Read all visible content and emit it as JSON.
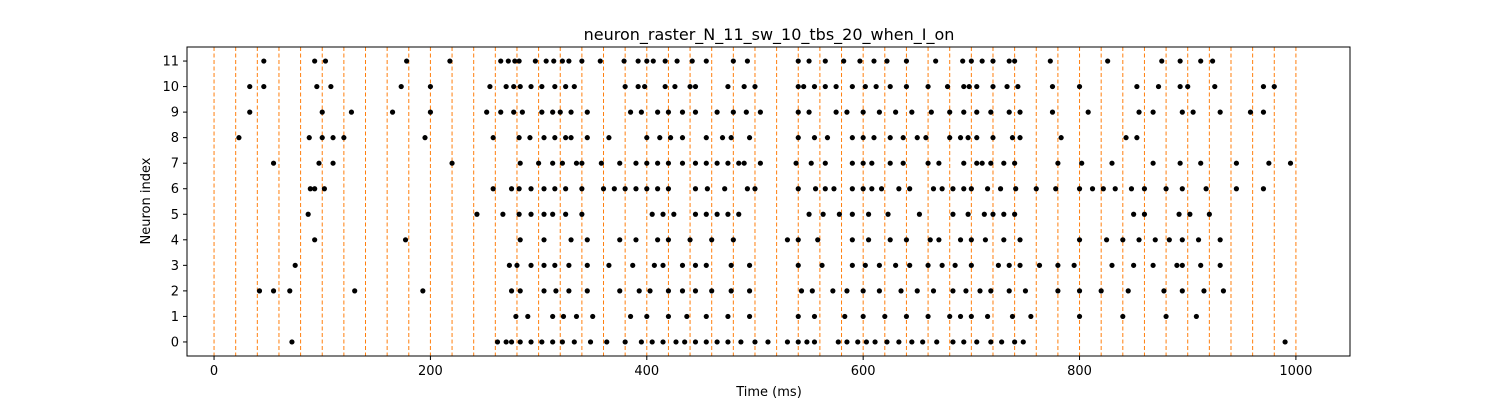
{
  "chart_data": {
    "type": "scatter",
    "title": "neuron_raster_N_11_sw_10_tbs_20_when_I_on",
    "xlabel": "Time (ms)",
    "ylabel": "Neuron index",
    "xlim": [
      -25,
      1050
    ],
    "ylim": [
      -0.55,
      11.55
    ],
    "xticks": [
      0,
      200,
      400,
      600,
      800,
      1000
    ],
    "yticks": [
      0,
      1,
      2,
      3,
      4,
      5,
      6,
      7,
      8,
      9,
      10,
      11
    ],
    "grid": false,
    "marker_color": "#000000",
    "vline_color": "#ff7f0e",
    "vline_style": "dashed",
    "vlines": [
      0,
      20,
      40,
      60,
      80,
      100,
      120,
      140,
      160,
      180,
      200,
      220,
      240,
      260,
      280,
      300,
      320,
      340,
      360,
      380,
      400,
      420,
      440,
      460,
      480,
      500,
      520,
      540,
      560,
      580,
      600,
      620,
      640,
      660,
      680,
      700,
      720,
      740,
      760,
      780,
      800,
      820,
      840,
      860,
      880,
      900,
      920,
      940,
      960,
      980,
      1000
    ],
    "spikes": [
      {
        "neuron": 11,
        "times": [
          46,
          93,
          103,
          178,
          218,
          265,
          272,
          278,
          282,
          297,
          307,
          314,
          322,
          328,
          340,
          357,
          379,
          392,
          400,
          406,
          417,
          428,
          442,
          455,
          480,
          493,
          540,
          550,
          565,
          582,
          597,
          610,
          622,
          640,
          667,
          692,
          700,
          710,
          720,
          735,
          740,
          773,
          826,
          876,
          893,
          912,
          923
        ]
      },
      {
        "neuron": 10,
        "times": [
          33,
          46,
          95,
          108,
          173,
          200,
          255,
          270,
          277,
          283,
          293,
          303,
          315,
          325,
          333,
          380,
          392,
          398,
          417,
          426,
          440,
          445,
          475,
          490,
          500,
          540,
          545,
          555,
          565,
          575,
          590,
          602,
          612,
          625,
          640,
          660,
          678,
          693,
          698,
          705,
          720,
          733,
          743,
          775,
          800,
          853,
          873,
          893,
          900,
          925,
          970,
          980
        ]
      },
      {
        "neuron": 9,
        "times": [
          33,
          100,
          127,
          165,
          200,
          252,
          265,
          277,
          285,
          303,
          313,
          320,
          330,
          345,
          385,
          395,
          410,
          420,
          433,
          445,
          465,
          480,
          492,
          505,
          540,
          550,
          575,
          585,
          600,
          615,
          630,
          645,
          663,
          680,
          693,
          705,
          718,
          735,
          745,
          775,
          808,
          855,
          868,
          895,
          905,
          930,
          958,
          970
        ]
      },
      {
        "neuron": 8,
        "times": [
          23,
          88,
          100,
          110,
          120,
          195,
          258,
          282,
          292,
          305,
          315,
          325,
          330,
          345,
          365,
          400,
          412,
          422,
          433,
          455,
          470,
          478,
          495,
          540,
          555,
          567,
          590,
          600,
          610,
          625,
          637,
          650,
          658,
          680,
          690,
          697,
          705,
          720,
          738,
          745,
          783,
          843,
          853
        ]
      },
      {
        "neuron": 7,
        "times": [
          55,
          97,
          110,
          220,
          283,
          300,
          313,
          322,
          335,
          340,
          358,
          375,
          390,
          400,
          410,
          420,
          433,
          445,
          455,
          465,
          475,
          485,
          490,
          505,
          538,
          552,
          565,
          590,
          600,
          608,
          625,
          637,
          660,
          670,
          693,
          705,
          710,
          718,
          730,
          740,
          780,
          802,
          830,
          868,
          893,
          912,
          945,
          975,
          995
        ]
      },
      {
        "neuron": 6,
        "times": [
          89,
          93,
          102,
          258,
          275,
          282,
          293,
          305,
          315,
          325,
          340,
          360,
          370,
          380,
          390,
          400,
          410,
          420,
          445,
          456,
          472,
          493,
          500,
          540,
          556,
          565,
          573,
          590,
          600,
          608,
          617,
          633,
          643,
          665,
          673,
          683,
          693,
          700,
          715,
          727,
          741,
          760,
          778,
          800,
          812,
          822,
          833,
          848,
          860,
          880,
          895,
          917,
          945,
          970
        ]
      },
      {
        "neuron": 5,
        "times": [
          87,
          243,
          267,
          282,
          293,
          305,
          313,
          325,
          340,
          405,
          415,
          425,
          445,
          455,
          465,
          475,
          485,
          550,
          563,
          578,
          590,
          605,
          623,
          652,
          683,
          697,
          712,
          720,
          730,
          740,
          850,
          860,
          892,
          902,
          920
        ]
      },
      {
        "neuron": 4,
        "times": [
          93,
          177,
          283,
          305,
          330,
          345,
          375,
          390,
          410,
          420,
          440,
          460,
          480,
          530,
          540,
          558,
          590,
          605,
          625,
          640,
          662,
          670,
          690,
          700,
          713,
          730,
          745,
          800,
          825,
          840,
          855,
          870,
          883,
          895,
          910,
          930
        ]
      },
      {
        "neuron": 3,
        "times": [
          75,
          273,
          280,
          293,
          305,
          315,
          328,
          345,
          365,
          387,
          407,
          415,
          433,
          445,
          455,
          478,
          495,
          540,
          562,
          590,
          602,
          615,
          630,
          643,
          660,
          673,
          685,
          700,
          725,
          735,
          745,
          763,
          780,
          795,
          830,
          850,
          868,
          890,
          895,
          912,
          930
        ]
      },
      {
        "neuron": 2,
        "times": [
          42,
          55,
          70,
          130,
          193,
          275,
          283,
          305,
          316,
          328,
          345,
          375,
          393,
          403,
          420,
          433,
          445,
          460,
          478,
          495,
          543,
          553,
          572,
          585,
          600,
          615,
          635,
          650,
          665,
          683,
          695,
          708,
          718,
          735,
          750,
          780,
          800,
          820,
          845,
          878,
          895,
          915,
          933
        ]
      },
      {
        "neuron": 1,
        "times": [
          279,
          290,
          313,
          323,
          335,
          350,
          385,
          400,
          420,
          437,
          455,
          475,
          495,
          540,
          555,
          583,
          600,
          620,
          640,
          660,
          680,
          690,
          700,
          715,
          738,
          755,
          800,
          840,
          880,
          908
        ]
      },
      {
        "neuron": 0,
        "times": [
          72,
          262,
          270,
          275,
          283,
          293,
          303,
          313,
          322,
          333,
          348,
          363,
          380,
          395,
          405,
          415,
          427,
          435,
          445,
          455,
          465,
          475,
          487,
          500,
          512,
          530,
          540,
          548,
          555,
          577,
          585,
          595,
          603,
          611,
          622,
          633,
          645,
          655,
          668,
          683,
          693,
          705,
          718,
          728,
          740,
          748,
          990
        ]
      }
    ]
  }
}
